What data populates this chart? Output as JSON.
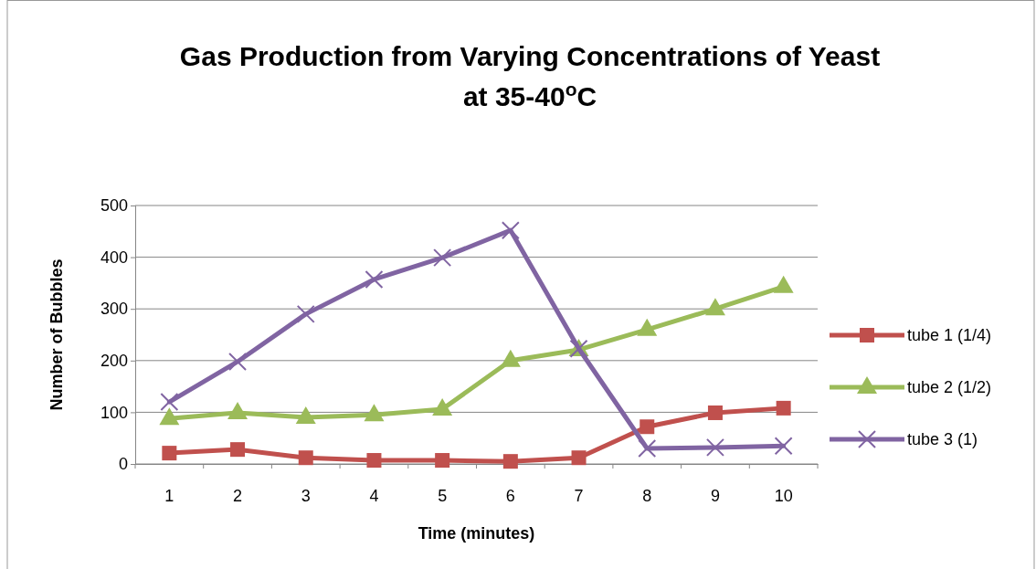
{
  "chart_data": {
    "type": "line",
    "title": "Gas Production from Varying Concentrations of Yeast at 35-40$^{o}$C",
    "xlabel": "Time (minutes)",
    "ylabel": "Number of Bubbles",
    "categories": [
      "1",
      "2",
      "3",
      "4",
      "5",
      "6",
      "7",
      "8",
      "9",
      "10"
    ],
    "ylim": [
      0,
      500
    ],
    "yticks": [
      0,
      100,
      200,
      300,
      400,
      500
    ],
    "grid": "y",
    "legend": "right",
    "series": [
      {
        "name": "tube 1 (1/4)",
        "color": "#c0504d",
        "marker": "square",
        "values": [
          21,
          28,
          12,
          7,
          7,
          5,
          12,
          72,
          99,
          108
        ]
      },
      {
        "name": "tube 2 (1/2)",
        "color": "#9bbb59",
        "marker": "triangle",
        "values": [
          88,
          99,
          90,
          95,
          106,
          200,
          221,
          260,
          300,
          343
        ]
      },
      {
        "name": "tube 3 (1)",
        "color": "#8064a2",
        "marker": "cross",
        "values": [
          120,
          198,
          290,
          357,
          399,
          452,
          223,
          30,
          32,
          35
        ]
      }
    ]
  }
}
